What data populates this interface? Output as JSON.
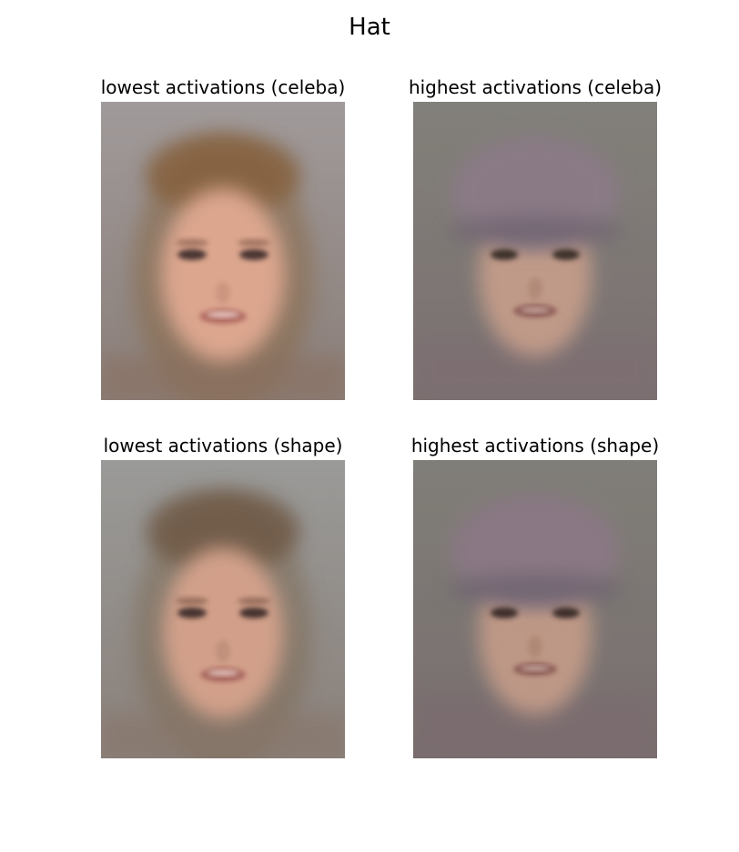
{
  "figure": {
    "title": "Hat"
  },
  "panels": [
    {
      "title": "lowest activations (celeba)",
      "image": "average-face-no-hat",
      "dataset": "celeba"
    },
    {
      "title": "highest activations (celeba)",
      "image": "average-face-with-hat",
      "dataset": "celeba"
    },
    {
      "title": "lowest activations (shape)",
      "image": "average-face-no-hat",
      "dataset": "shape"
    },
    {
      "title": "highest activations (shape)",
      "image": "average-face-with-hat",
      "dataset": "shape"
    }
  ],
  "colors": {
    "background_celeba_low": "#9c9696",
    "background_celeba_high": "#807c78",
    "background_shape_low": "#979895",
    "background_shape_high": "#7e7b76",
    "hair": "#8a6a4a",
    "skin": "#d9a58c",
    "hat": "#8c7c86"
  }
}
